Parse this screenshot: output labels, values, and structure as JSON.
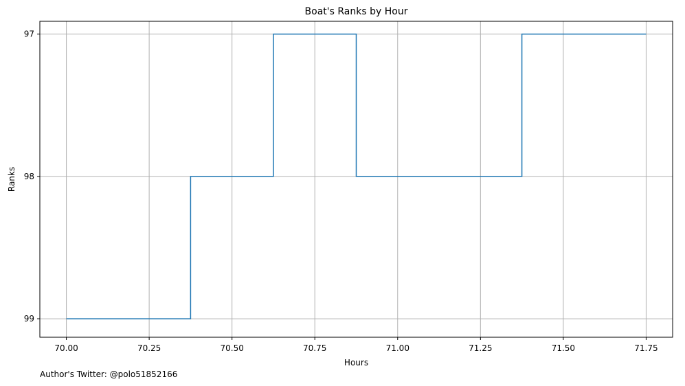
{
  "chart_data": {
    "type": "line",
    "drawstyle": "steps-post",
    "title": "Boat's Ranks by Hour",
    "xlabel": "Hours",
    "ylabel": "Ranks",
    "x_ticks": [
      70.0,
      70.25,
      70.5,
      70.75,
      71.0,
      71.25,
      71.5,
      71.75
    ],
    "x_tick_labels": [
      "70.00",
      "70.25",
      "70.50",
      "70.75",
      "71.00",
      "71.25",
      "71.50",
      "71.75"
    ],
    "y_ticks": [
      97,
      98,
      99
    ],
    "y_tick_labels": [
      "97",
      "98",
      "99"
    ],
    "y_inverted": true,
    "xlim": [
      69.92,
      71.83
    ],
    "ylim": [
      99.13,
      96.91
    ],
    "grid": true,
    "series": [
      {
        "color": "#1f77b4",
        "x": [
          70.0,
          70.375,
          70.625,
          70.875,
          71.375,
          71.75
        ],
        "y": [
          99,
          98,
          97,
          98,
          97,
          97
        ]
      }
    ]
  },
  "footer_text": "Author's Twitter: @polo51852166",
  "colors": {
    "line": "#1f77b4",
    "grid": "#b0b0b0",
    "axes": "#000000"
  }
}
